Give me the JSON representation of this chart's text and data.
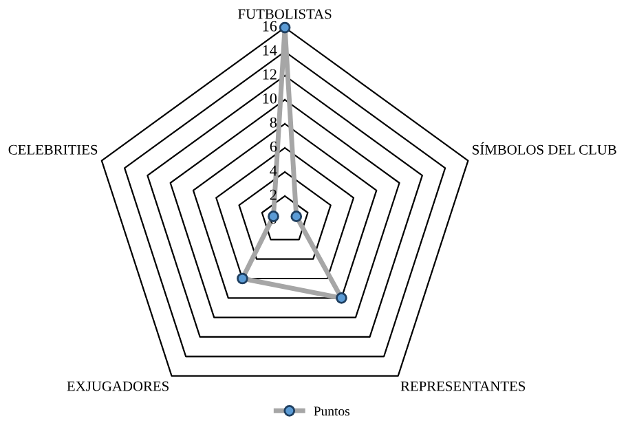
{
  "chart_data": {
    "type": "radar",
    "categories": [
      "FUTBOLISTAS",
      "SÍMBOLOS DEL CLUB",
      "REPRESENTANTES",
      "EXJUGADORES",
      "CELEBRITIES"
    ],
    "series": [
      {
        "name": "Puntos",
        "color": "#a6a6a6",
        "values": [
          16,
          1,
          8,
          6,
          1
        ]
      }
    ],
    "ylim": [
      0,
      16
    ],
    "yticks": [
      0,
      2,
      4,
      6,
      8,
      10,
      12,
      14,
      16
    ],
    "marker": "circle",
    "legend": "bottom"
  }
}
